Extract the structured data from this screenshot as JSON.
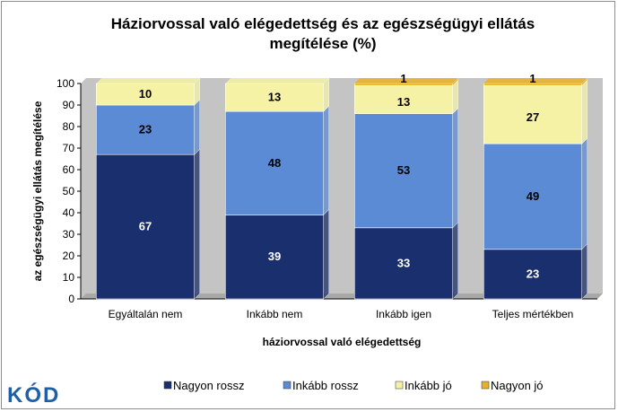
{
  "title_line1": "Háziorvossal való elégedettség és az egészségügyi ellátás",
  "title_line2": "megítélése  (%)",
  "logo_text": "KÓD",
  "colors": {
    "Nagyon rossz": "#1a2f6e",
    "Inkább rossz": "#5b8bd4",
    "Inkább jó": "#f5f2a6",
    "Nagyon jó": "#e8b12a",
    "plot_bg": "#c4c4c4"
  },
  "chart_data": {
    "type": "bar",
    "stacked": true,
    "categories": [
      "Egyáltalán nem",
      "Inkább nem",
      "Inkább igen",
      "Teljes mértékben"
    ],
    "series": [
      {
        "name": "Nagyon rossz",
        "values": [
          67,
          39,
          33,
          23
        ]
      },
      {
        "name": "Inkább rossz",
        "values": [
          23,
          48,
          53,
          49
        ]
      },
      {
        "name": "Inkább jó",
        "values": [
          10,
          13,
          13,
          27
        ]
      },
      {
        "name": "Nagyon jó",
        "values": [
          0,
          0,
          1,
          1
        ]
      }
    ],
    "data_labels": [
      [
        "67",
        "23",
        "10",
        ""
      ],
      [
        "39",
        "48",
        "13",
        ""
      ],
      [
        "33",
        "53",
        "13",
        "1"
      ],
      [
        "23",
        "49",
        "27",
        "1"
      ]
    ],
    "xlabel": "háziorvossal való elégedettség",
    "ylabel": "az egészségügyi  ellátás  megítélése",
    "ylim": [
      0,
      100
    ],
    "yticks": [
      0,
      10,
      20,
      30,
      40,
      50,
      60,
      70,
      80,
      90,
      100
    ],
    "grid": false,
    "legend": "bottom"
  }
}
